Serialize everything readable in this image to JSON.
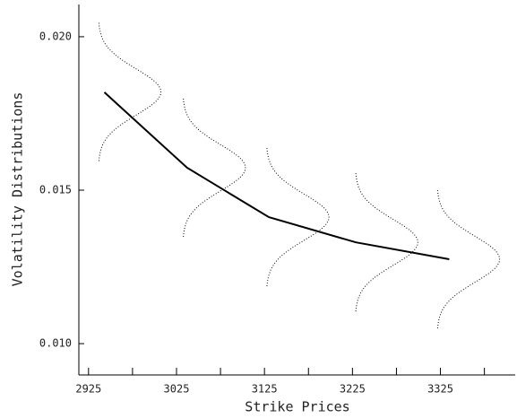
{
  "chart_data": {
    "type": "line",
    "x_label": "Strike Prices",
    "y_label": "Volatility Distributions",
    "x": [
      2943,
      3037,
      3130,
      3229,
      3335
    ],
    "series": [
      {
        "color": "#000000",
        "values": [
          0.01819,
          0.01573,
          0.01412,
          0.0133,
          0.01275
        ]
      }
    ],
    "distributions": [
      {
        "x": 2936,
        "mean": 0.0182,
        "sd": 0.00075
      },
      {
        "x": 3032,
        "mean": 0.01573,
        "sd": 0.00075
      },
      {
        "x": 3127,
        "mean": 0.01412,
        "sd": 0.00075
      },
      {
        "x": 3228,
        "mean": 0.0133,
        "sd": 0.00075
      },
      {
        "x": 3321,
        "mean": 0.01275,
        "sd": 0.00075
      }
    ],
    "xlim": [
      2914,
      3410
    ],
    "ylim": [
      0.00898,
      0.02105
    ],
    "xticks": [
      2925,
      3025,
      3125,
      3225,
      3325
    ],
    "xminorticks": [
      2975,
      3075,
      3175,
      3275,
      3375
    ],
    "yticks": [
      {
        "value": 0.01,
        "label": "0.010"
      },
      {
        "value": 0.015,
        "label": "0.015"
      },
      {
        "value": 0.02,
        "label": "0.020"
      }
    ]
  }
}
